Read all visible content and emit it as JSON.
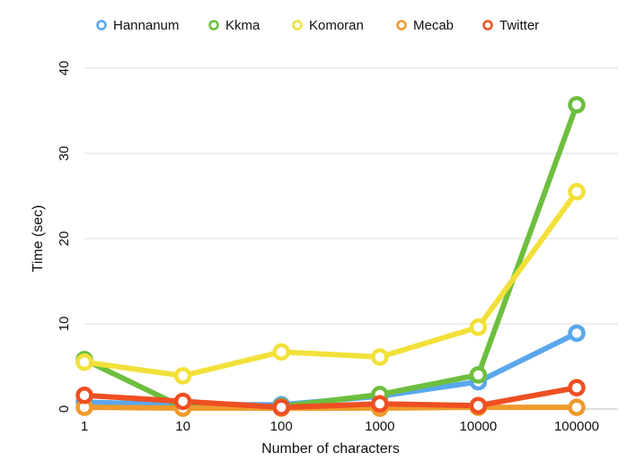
{
  "chart_data": {
    "type": "line",
    "title": "",
    "xlabel": "Number of characters",
    "ylabel": "Time (sec)",
    "categories": [
      "1",
      "10",
      "100",
      "1000",
      "10000",
      "100000"
    ],
    "ylim": [
      0,
      40
    ],
    "yticks": [
      0,
      10,
      20,
      30,
      40
    ],
    "grid": true,
    "legend_position": "top",
    "series": [
      {
        "name": "Hannanum",
        "color": "#5aa7ec",
        "values": [
          0.8,
          0.5,
          0.5,
          1.5,
          3.2,
          8.9
        ]
      },
      {
        "name": "Kkma",
        "color": "#6dbf3e",
        "values": [
          5.8,
          0.2,
          0.3,
          1.7,
          4.0,
          35.7
        ]
      },
      {
        "name": "Komoran",
        "color": "#f2e03a",
        "values": [
          5.5,
          3.9,
          6.7,
          6.1,
          9.6,
          25.5
        ]
      },
      {
        "name": "Mecab",
        "color": "#ef9a2c",
        "values": [
          0.2,
          0.1,
          0.1,
          0.1,
          0.2,
          0.2
        ]
      },
      {
        "name": "Twitter",
        "color": "#ee4f23",
        "values": [
          1.6,
          0.9,
          0.2,
          0.6,
          0.4,
          2.5
        ]
      }
    ]
  }
}
